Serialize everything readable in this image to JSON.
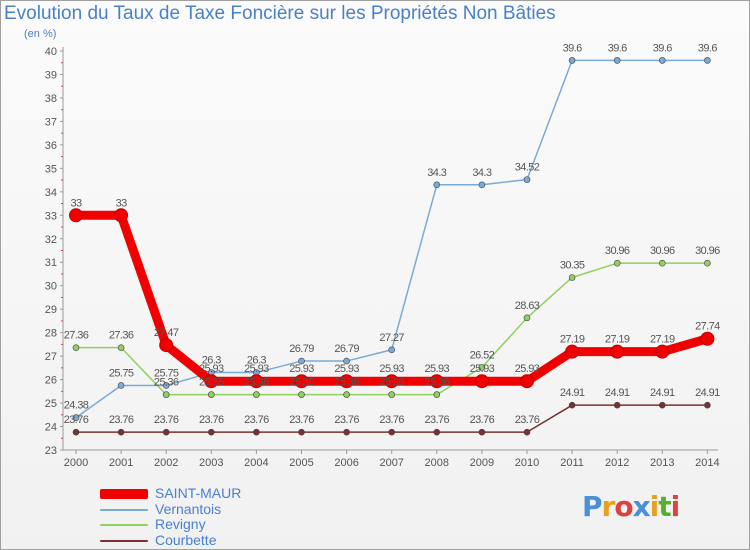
{
  "header": {
    "title": "Evolution du Taux de Taxe Foncière sur les Propriétés Non Bâties",
    "subtitle": "(en %)"
  },
  "logo": {
    "text": "Proxiti",
    "letter_colors": [
      "#4a90d9",
      "#e8a020",
      "#e04040",
      "#4a90d9",
      "#e8a020",
      "#58b030",
      "#e04040"
    ]
  },
  "chart_data": {
    "type": "line",
    "x": [
      "2000",
      "2001",
      "2002",
      "2003",
      "2004",
      "2005",
      "2006",
      "2007",
      "2008",
      "2009",
      "2010",
      "2011",
      "2012",
      "2013",
      "2014"
    ],
    "ylim": [
      23,
      40
    ],
    "yticks": [
      "23",
      "24",
      "25",
      "26",
      "27",
      "28",
      "29",
      "30",
      "31",
      "32",
      "33",
      "34",
      "35",
      "36",
      "37",
      "38",
      "39",
      "40"
    ],
    "grid": false,
    "legend_position": "bottom-left",
    "series": [
      {
        "name": "Courbette",
        "color": "#7a3030",
        "values": [
          23.76,
          23.76,
          23.76,
          23.76,
          23.76,
          23.76,
          23.76,
          23.76,
          23.76,
          23.76,
          23.76,
          24.91,
          24.91,
          24.91,
          24.91
        ],
        "labels": [
          "23.76",
          "23.76",
          "23.76",
          "23.76",
          "23.76",
          "23.76",
          "23.76",
          "23.76",
          "23.76",
          "23.76",
          "23.76",
          "24.91",
          "24.91",
          "24.91",
          "24.91"
        ]
      },
      {
        "name": "Revigny",
        "color": "#90d060",
        "values": [
          27.36,
          27.36,
          25.36,
          25.36,
          25.36,
          25.36,
          25.36,
          25.36,
          25.36,
          26.52,
          28.63,
          30.35,
          30.96,
          30.96,
          30.96
        ],
        "labels": [
          "27.36",
          "27.36",
          "25.36",
          "25.36",
          "25.36",
          "25.36",
          "25.36",
          "25.36",
          "25.36",
          "26.52",
          "28.63",
          "30.35",
          "30.96",
          "30.96",
          "30.96"
        ]
      },
      {
        "name": "Vernantois",
        "color": "#7aaad6",
        "values": [
          24.38,
          25.75,
          25.75,
          26.3,
          26.3,
          26.79,
          26.79,
          27.27,
          34.3,
          34.3,
          34.52,
          39.6,
          39.6,
          39.6,
          39.6
        ],
        "labels": [
          "24.38",
          "25.75",
          "25.75",
          "26.3",
          "26.3",
          "26.79",
          "26.79",
          "27.27",
          "34.3",
          "34.3",
          "34.52",
          "39.6",
          "39.6",
          "39.6",
          "39.6"
        ]
      },
      {
        "name": "SAINT-MAUR",
        "color": "#f00000",
        "values": [
          33,
          33,
          27.47,
          25.93,
          25.93,
          25.93,
          25.93,
          25.93,
          25.93,
          25.93,
          25.93,
          27.19,
          27.19,
          27.19,
          27.74
        ],
        "labels": [
          "33",
          "33",
          "27.47",
          "25.93",
          "25.93",
          "25.93",
          "25.93",
          "25.93",
          "25.93",
          "25.93",
          "25.93",
          "27.19",
          "27.19",
          "27.19",
          "27.74"
        ]
      }
    ],
    "legend_order": [
      "SAINT-MAUR",
      "Vernantois",
      "Revigny",
      "Courbette"
    ]
  }
}
